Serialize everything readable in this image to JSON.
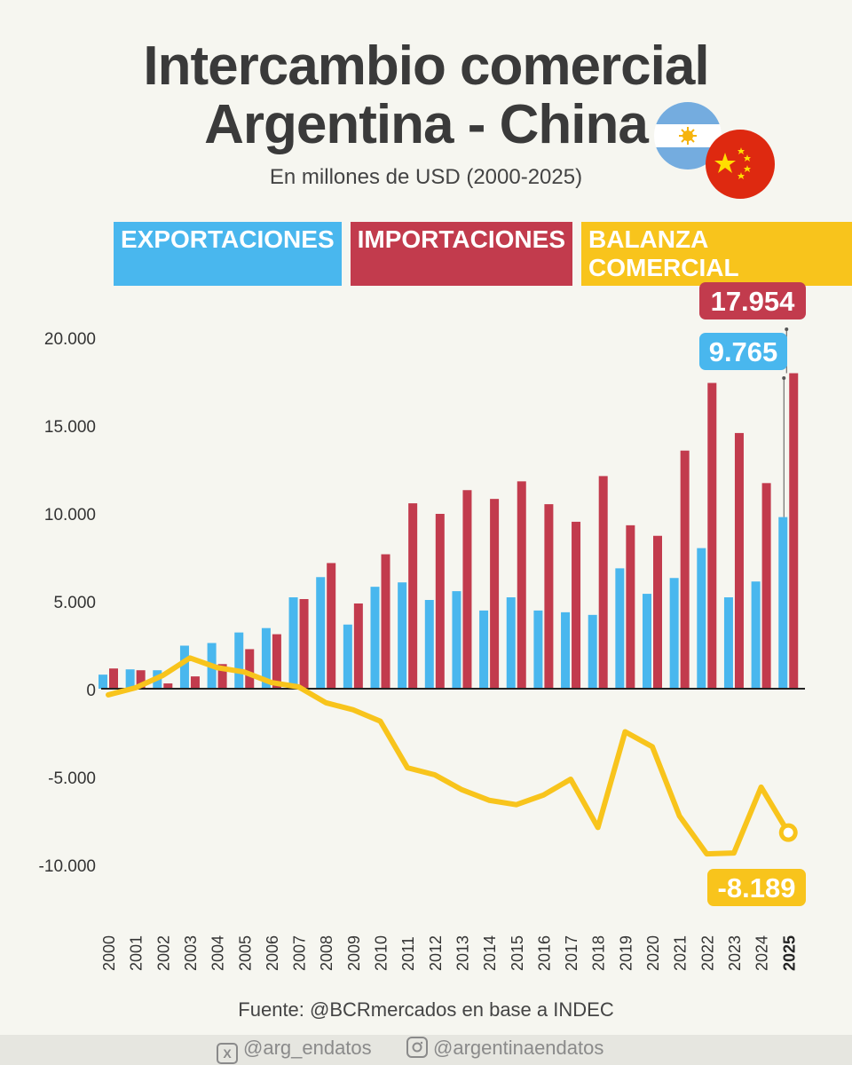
{
  "header": {
    "title_line1": "Intercambio comercial",
    "title_line2": "Argentina - China",
    "subtitle": "En millones de USD (2000-2025)"
  },
  "legend": [
    {
      "label": "EXPORTACIONES",
      "color": "#49b7ee"
    },
    {
      "label": "IMPORTACIONES",
      "color": "#c23b4d"
    },
    {
      "label": "BALANZA COMERCIAL",
      "color": "#f8c41c"
    }
  ],
  "icons": {
    "flag_argentina": "argentina-flag-icon",
    "flag_china": "china-flag-icon"
  },
  "chart_data": {
    "type": "bar",
    "categories": [
      "2000",
      "2001",
      "2002",
      "2003",
      "2004",
      "2005",
      "2006",
      "2007",
      "2008",
      "2009",
      "2010",
      "2011",
      "2012",
      "2013",
      "2014",
      "2015",
      "2016",
      "2017",
      "2018",
      "2019",
      "2020",
      "2021",
      "2022",
      "2023",
      "2024",
      "2025"
    ],
    "series": [
      {
        "name": "EXPORTACIONES",
        "type": "bar",
        "color": "#49b7ee",
        "values": [
          800,
          1100,
          1050,
          2450,
          2600,
          3200,
          3450,
          5200,
          6350,
          3650,
          5800,
          6050,
          5050,
          5550,
          4450,
          5200,
          4450,
          4350,
          4200,
          6850,
          5400,
          6300,
          8000,
          5200,
          6100,
          9765
        ]
      },
      {
        "name": "IMPORTACIONES",
        "type": "bar",
        "color": "#c23b4d",
        "values": [
          1150,
          1050,
          300,
          700,
          1400,
          2250,
          3100,
          5100,
          7150,
          4850,
          7650,
          10550,
          9950,
          11300,
          10800,
          11800,
          10500,
          9500,
          12100,
          9300,
          8700,
          13550,
          17400,
          14550,
          11700,
          17954
        ]
      },
      {
        "name": "BALANZA COMERCIAL",
        "type": "line",
        "color": "#f8c41c",
        "values": [
          -350,
          50,
          750,
          1750,
          1200,
          950,
          350,
          100,
          -800,
          -1200,
          -1850,
          -4500,
          -4900,
          -5750,
          -6350,
          -6600,
          -6050,
          -5150,
          -7900,
          -2450,
          -3300,
          -7250,
          -9400,
          -9350,
          -5600,
          -8189
        ]
      }
    ],
    "yticks": [
      -10000,
      -5000,
      0,
      5000,
      10000,
      15000,
      20000
    ],
    "ytick_labels": [
      "-10.000",
      "-5.000",
      "0",
      "5.000",
      "10.000",
      "15.000",
      "20.000"
    ],
    "ylim": [
      -11000,
      20500
    ],
    "highlight_category": "2025",
    "annotations": [
      {
        "series": "IMPORTACIONES",
        "label": "17.954",
        "color": "#c23b4d"
      },
      {
        "series": "EXPORTACIONES",
        "label": "9.765",
        "color": "#49b7ee"
      },
      {
        "series": "BALANZA COMERCIAL",
        "label": "-8.189",
        "color": "#f8c41c"
      }
    ],
    "grid": false,
    "legend_position": "top"
  },
  "footer": {
    "source": "Fuente: @BCRmercados en base a INDEC",
    "x_handle": "@arg_endatos",
    "instagram_handle": "@argentinaendatos",
    "x_icon": "x-logo-icon",
    "instagram_icon": "instagram-icon"
  }
}
